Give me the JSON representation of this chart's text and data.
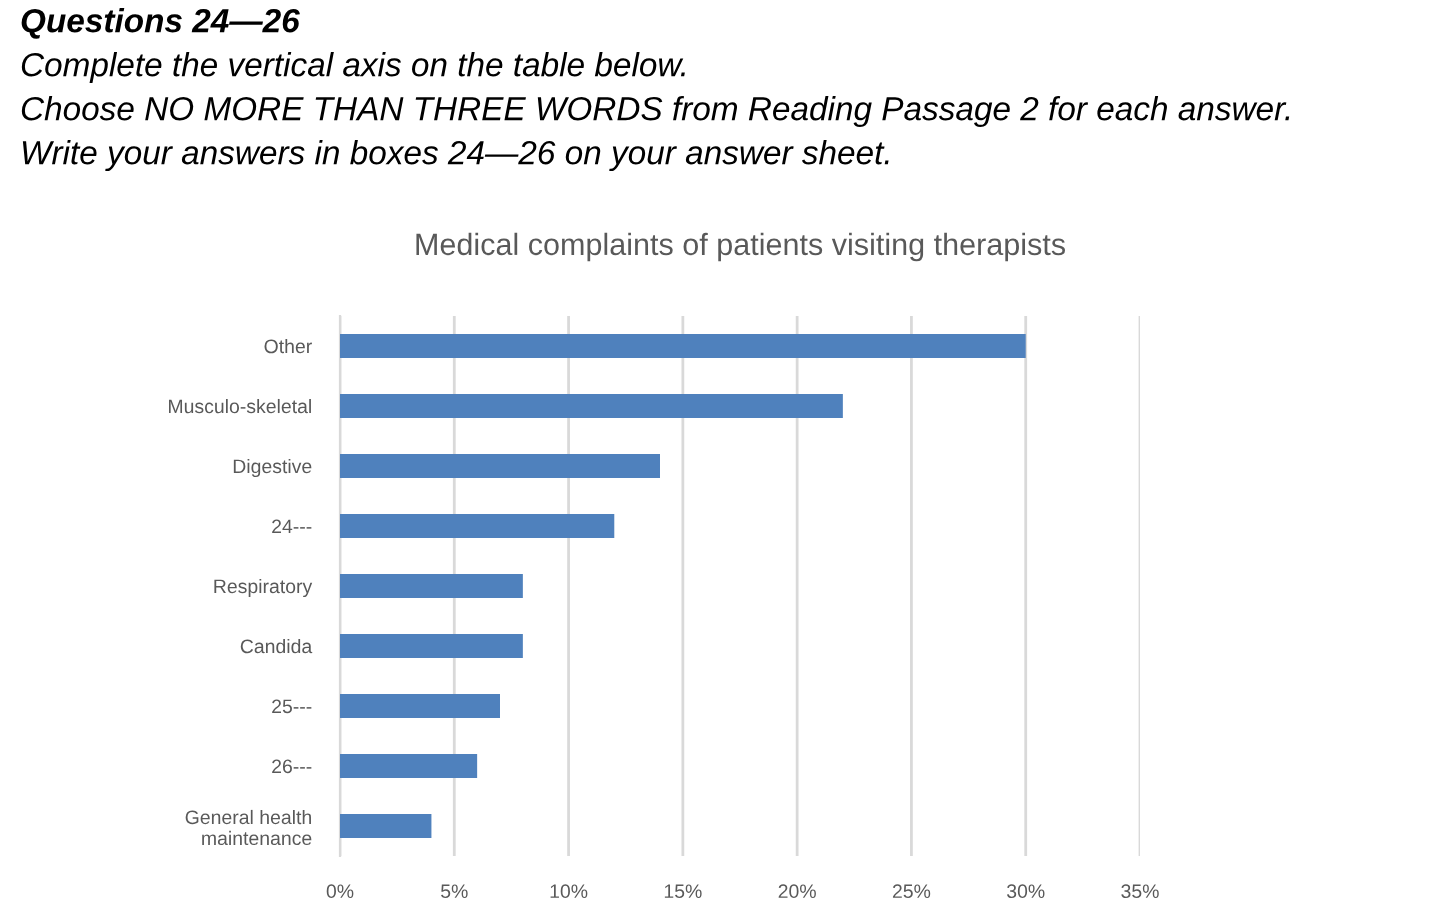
{
  "chart_data": {
    "type": "bar",
    "orientation": "horizontal",
    "title": "Medical complaints of patients visiting therapists",
    "annotations": [
      "Questions 24—26",
      "Complete the vertical axis on the table below.",
      "Choose NO MORE THAN THREE WORDS from Reading Passage 2 for each answer.",
      "Write your answers in boxes 24—26 on your answer sheet."
    ],
    "categories": [
      "Other",
      "Musculo-skeletal",
      "Digestive",
      "24---",
      "Respiratory",
      "Candida",
      "25---",
      "26---",
      "General health\nmaintenance"
    ],
    "values": [
      30,
      22,
      14,
      12,
      8,
      8,
      7,
      6,
      4
    ],
    "color": "#4f81bd",
    "xlim": [
      0,
      35
    ],
    "xticks": [
      {
        "value": 0,
        "label": "0%"
      },
      {
        "value": 5,
        "label": "5%"
      },
      {
        "value": 10,
        "label": "10%"
      },
      {
        "value": 15,
        "label": "15%"
      },
      {
        "value": 20,
        "label": "20%"
      },
      {
        "value": 25,
        "label": "25%"
      },
      {
        "value": 30,
        "label": "30%"
      },
      {
        "value": 35,
        "label": "35%"
      }
    ],
    "grid": "x",
    "legend": false
  }
}
